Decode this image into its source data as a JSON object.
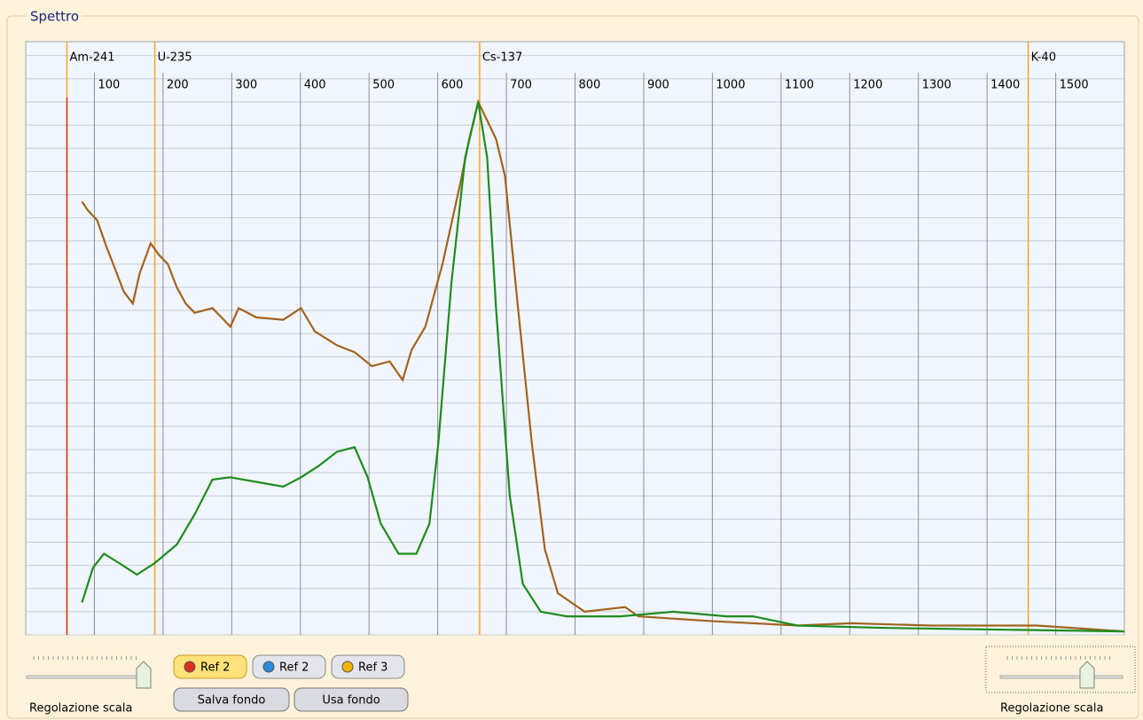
{
  "panel_title": "Spettro",
  "chart_data": {
    "type": "line",
    "xlim": [
      0,
      1600
    ],
    "xticks": [
      100,
      200,
      300,
      400,
      500,
      600,
      700,
      800,
      900,
      1000,
      1100,
      1200,
      1300,
      1400,
      1500
    ],
    "ylim": [
      0,
      25.6
    ],
    "yticks": [
      0,
      1,
      2,
      3,
      4,
      5,
      6,
      7,
      8,
      9,
      10,
      11,
      12,
      13,
      14,
      15,
      16,
      17,
      18,
      19,
      20,
      21,
      22,
      23,
      24,
      25
    ],
    "grid": true,
    "markers": [
      {
        "label": "Am-241",
        "x": 60
      },
      {
        "label": "U-235",
        "x": 188
      },
      {
        "label": "Cs-137",
        "x": 661
      },
      {
        "label": "K-40",
        "x": 1460
      }
    ],
    "marker_color": "#f5a623",
    "cursor_x": 60,
    "cursor_color": "#e0301e",
    "series": [
      {
        "color": "#a0641e",
        "x": [
          82,
          91,
          104,
          117,
          130,
          143,
          156,
          166,
          182,
          194,
          207,
          220,
          233,
          246,
          272,
          298,
          310,
          336,
          375,
          401,
          421,
          453,
          479,
          504,
          530,
          549,
          562,
          582,
          607,
          633,
          646,
          659,
          672,
          685,
          698,
          717,
          737,
          756,
          775,
          814,
          873,
          892,
          995,
          1124,
          1202,
          1318,
          1473,
          1600
        ],
        "values": [
          18.7,
          18.3,
          17.9,
          16.8,
          15.8,
          14.8,
          14.3,
          15.6,
          16.9,
          16.4,
          16.0,
          15.0,
          14.3,
          13.9,
          14.1,
          13.3,
          14.1,
          13.7,
          13.6,
          14.1,
          13.1,
          12.5,
          12.2,
          11.6,
          11.8,
          11.0,
          12.3,
          13.3,
          16.0,
          19.5,
          21.4,
          23.0,
          22.2,
          21.4,
          19.8,
          14.1,
          8.3,
          3.7,
          1.8,
          1.0,
          1.2,
          0.8,
          0.6,
          0.4,
          0.5,
          0.4,
          0.4,
          0.15
        ]
      },
      {
        "color": "#1e8c1e",
        "x": [
          82,
          98,
          114,
          136,
          162,
          188,
          220,
          246,
          272,
          298,
          336,
          375,
          401,
          427,
          453,
          479,
          498,
          517,
          543,
          569,
          588,
          601,
          620,
          640,
          659,
          672,
          685,
          705,
          724,
          750,
          788,
          866,
          943,
          1021,
          1059,
          1124,
          1254,
          1600
        ],
        "values": [
          1.4,
          2.9,
          3.5,
          3.1,
          2.6,
          3.1,
          3.9,
          5.2,
          6.7,
          6.8,
          6.6,
          6.4,
          6.8,
          7.3,
          7.9,
          8.1,
          6.8,
          4.8,
          3.5,
          3.5,
          4.8,
          8.3,
          15.2,
          20.6,
          23.0,
          20.6,
          14.1,
          6.0,
          2.2,
          1.0,
          0.8,
          0.8,
          1.0,
          0.8,
          0.8,
          0.4,
          0.3,
          0.15
        ]
      }
    ]
  },
  "controls": {
    "ref_buttons": [
      {
        "label": "Ref 2",
        "dot": "#e0301e",
        "active": true
      },
      {
        "label": "Ref 2",
        "dot": "#2a8ad8",
        "active": false
      },
      {
        "label": "Ref 3",
        "dot": "#f2b400",
        "active": false
      }
    ],
    "action_buttons": [
      "Salva fondo",
      "Usa fondo"
    ],
    "left_slider_label": "Regolazione scala",
    "right_slider_label": "Regolazione scala"
  }
}
